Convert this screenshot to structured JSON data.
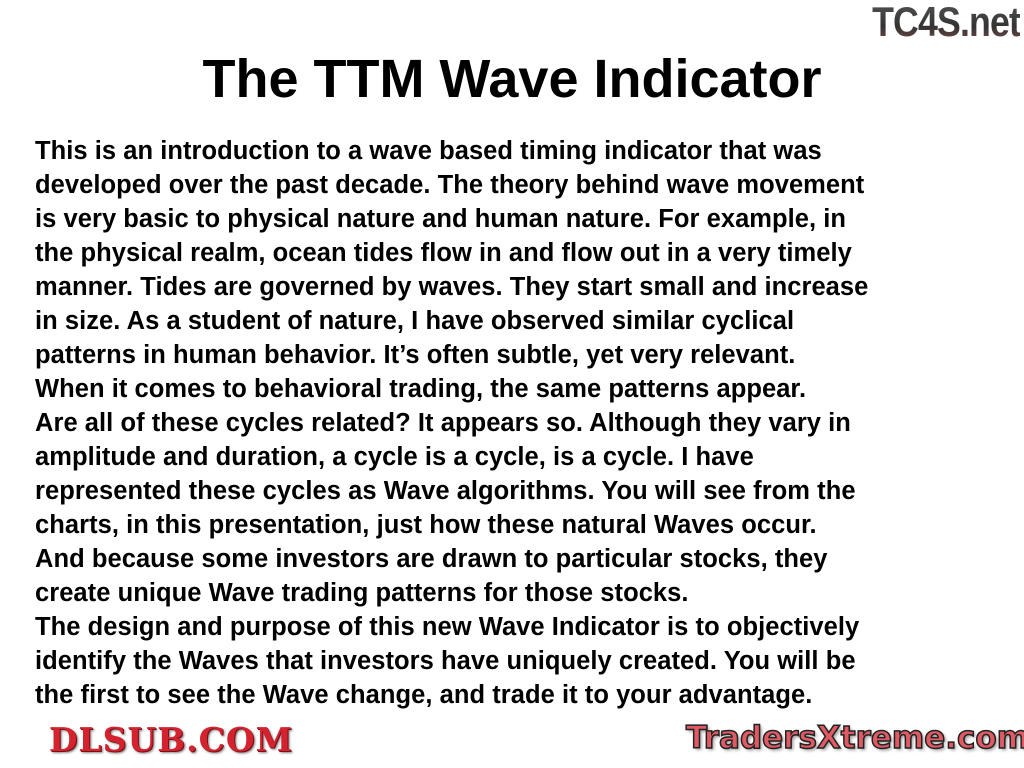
{
  "title": "The TTM Wave Indicator",
  "body_lines": [
    "This is an introduction to a wave based timing indicator that was",
    "developed over the past decade. The theory behind wave movement",
    "is very basic to physical nature and human nature. For example, in",
    "the physical realm, ocean tides flow in and flow out in a very timely",
    "manner. Tides are governed by waves. They start small and increase",
    "in size. As a student of nature, I have observed similar cyclical",
    "patterns in human behavior. It’s often subtle, yet very relevant.",
    "When it comes to behavioral trading, the same patterns appear.",
    "Are all of these cycles related? It appears so. Although they vary in",
    "amplitude and duration, a cycle is a cycle, is a cycle. I have",
    "represented these cycles as Wave algorithms. You will see from the",
    "charts, in this presentation, just how these natural Waves occur.",
    "And because some investors are drawn to particular stocks, they",
    "create unique Wave trading patterns for those stocks.",
    "The design and purpose of this new Wave Indicator is to objectively",
    "identify the Waves that investors have uniquely created. You will be",
    "the first to see the Wave change, and trade it to your advantage."
  ],
  "watermarks": {
    "top_right": "TC4S.net",
    "center": "DLSUB.COM",
    "bottom_right": "TradersXtreme.com"
  }
}
